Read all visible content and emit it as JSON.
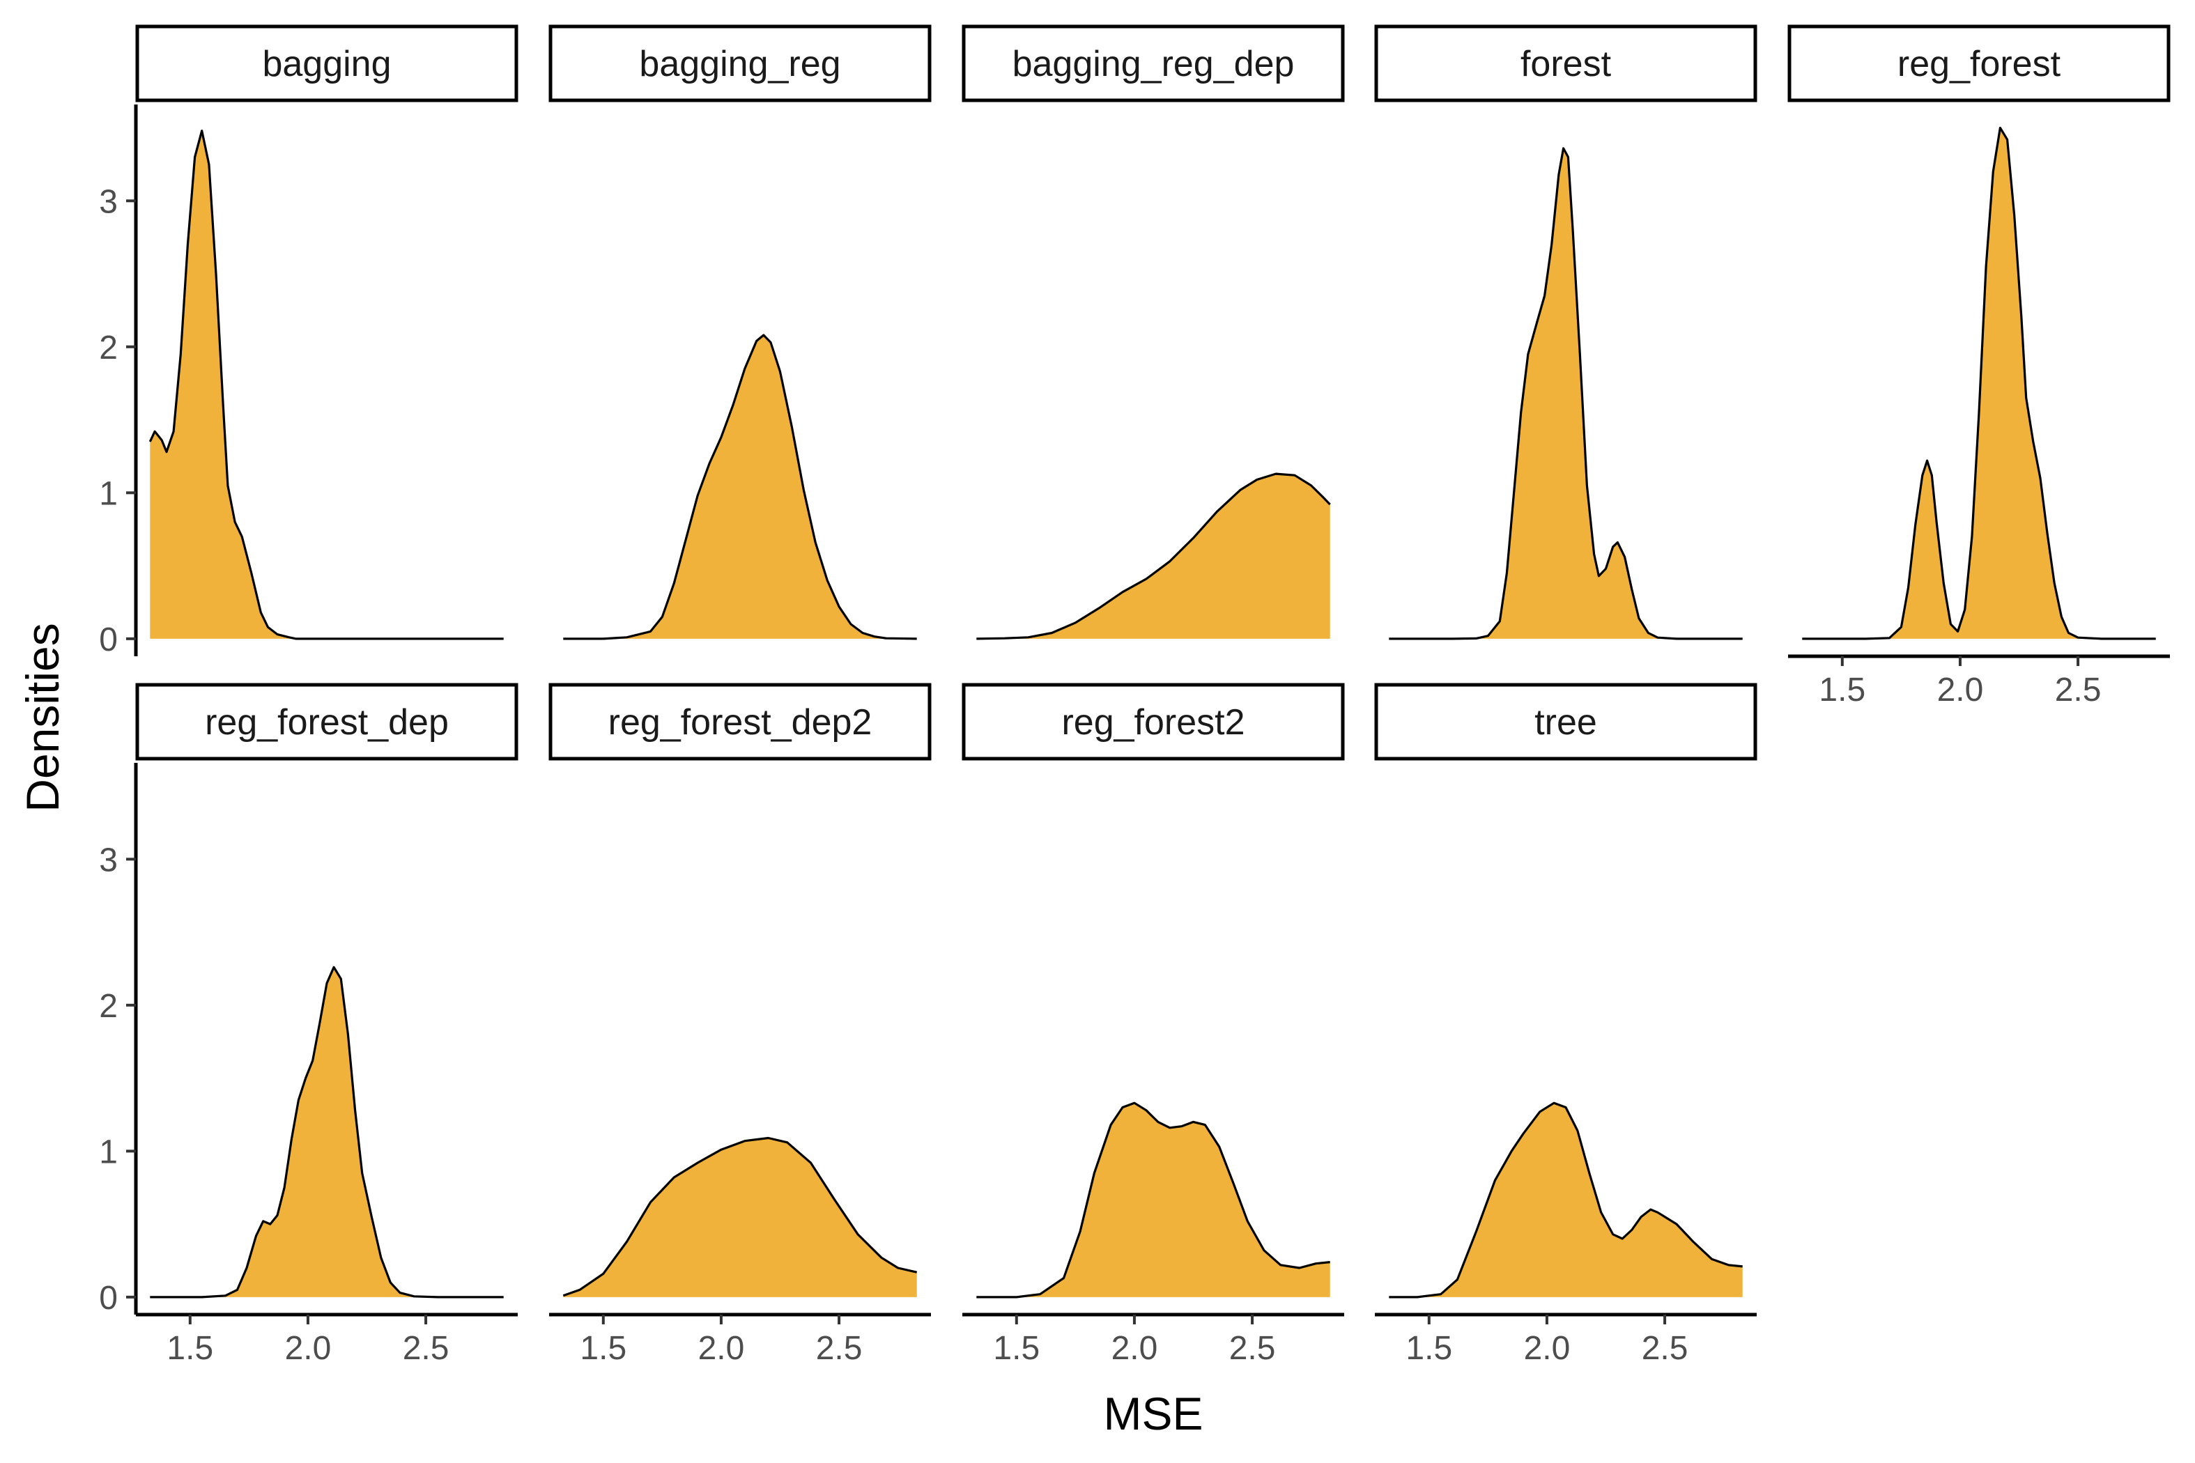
{
  "chart_data": {
    "type": "area",
    "subtype": "faceted density plot",
    "xlabel": "MSE",
    "ylabel": "Densities",
    "xlim": [
      1.27,
      2.89
    ],
    "ylim": [
      -0.12,
      3.66
    ],
    "x_ticks": [
      1.5,
      2.0,
      2.5
    ],
    "x_tick_labels": [
      "1.5",
      "2.0",
      "2.5"
    ],
    "y_ticks": [
      0,
      1,
      2,
      3
    ],
    "y_tick_labels": [
      "0",
      "1",
      "2",
      "3"
    ],
    "grid": false,
    "fill_color": "#F0B23B",
    "line_color": "#000000",
    "strip_fill": "#FFFFFF",
    "panels": [
      {
        "name": "bagging",
        "x_range": [
          1.33,
          2.83
        ],
        "fill_from": 1.33,
        "fill_to": 1.95,
        "points": [
          [
            1.33,
            1.35
          ],
          [
            1.35,
            1.42
          ],
          [
            1.38,
            1.36
          ],
          [
            1.4,
            1.28
          ],
          [
            1.43,
            1.42
          ],
          [
            1.46,
            1.95
          ],
          [
            1.49,
            2.7
          ],
          [
            1.52,
            3.3
          ],
          [
            1.55,
            3.48
          ],
          [
            1.58,
            3.25
          ],
          [
            1.61,
            2.5
          ],
          [
            1.64,
            1.6
          ],
          [
            1.66,
            1.05
          ],
          [
            1.69,
            0.8
          ],
          [
            1.72,
            0.7
          ],
          [
            1.76,
            0.45
          ],
          [
            1.8,
            0.18
          ],
          [
            1.83,
            0.08
          ],
          [
            1.87,
            0.03
          ],
          [
            1.92,
            0.01
          ],
          [
            1.95,
            0.0
          ],
          [
            2.2,
            0.0
          ],
          [
            2.5,
            0.0
          ],
          [
            2.83,
            0.0
          ]
        ]
      },
      {
        "name": "bagging_reg",
        "x_range": [
          1.33,
          2.83
        ],
        "fill_from": 1.33,
        "fill_to": 2.83,
        "points": [
          [
            1.33,
            0.0
          ],
          [
            1.5,
            0.0
          ],
          [
            1.6,
            0.01
          ],
          [
            1.7,
            0.05
          ],
          [
            1.75,
            0.15
          ],
          [
            1.8,
            0.38
          ],
          [
            1.85,
            0.68
          ],
          [
            1.9,
            0.98
          ],
          [
            1.95,
            1.2
          ],
          [
            2.0,
            1.38
          ],
          [
            2.05,
            1.6
          ],
          [
            2.1,
            1.85
          ],
          [
            2.15,
            2.04
          ],
          [
            2.18,
            2.08
          ],
          [
            2.21,
            2.03
          ],
          [
            2.25,
            1.83
          ],
          [
            2.3,
            1.45
          ],
          [
            2.35,
            1.02
          ],
          [
            2.4,
            0.66
          ],
          [
            2.45,
            0.4
          ],
          [
            2.5,
            0.22
          ],
          [
            2.55,
            0.1
          ],
          [
            2.6,
            0.04
          ],
          [
            2.65,
            0.015
          ],
          [
            2.7,
            0.003
          ],
          [
            2.83,
            0.0
          ]
        ]
      },
      {
        "name": "bagging_reg_dep",
        "x_range": [
          1.33,
          2.83
        ],
        "fill_from": 1.33,
        "fill_to": 2.83,
        "points": [
          [
            1.33,
            0.0
          ],
          [
            1.45,
            0.003
          ],
          [
            1.55,
            0.01
          ],
          [
            1.65,
            0.04
          ],
          [
            1.75,
            0.11
          ],
          [
            1.85,
            0.21
          ],
          [
            1.95,
            0.32
          ],
          [
            2.05,
            0.41
          ],
          [
            2.15,
            0.53
          ],
          [
            2.25,
            0.69
          ],
          [
            2.35,
            0.87
          ],
          [
            2.45,
            1.02
          ],
          [
            2.52,
            1.09
          ],
          [
            2.6,
            1.13
          ],
          [
            2.68,
            1.12
          ],
          [
            2.75,
            1.05
          ],
          [
            2.8,
            0.97
          ],
          [
            2.83,
            0.92
          ]
        ]
      },
      {
        "name": "forest",
        "x_range": [
          1.33,
          2.83
        ],
        "fill_from": 1.33,
        "fill_to": 2.83,
        "points": [
          [
            1.33,
            0.0
          ],
          [
            1.6,
            0.0
          ],
          [
            1.7,
            0.002
          ],
          [
            1.75,
            0.02
          ],
          [
            1.8,
            0.12
          ],
          [
            1.83,
            0.45
          ],
          [
            1.86,
            1.0
          ],
          [
            1.89,
            1.55
          ],
          [
            1.92,
            1.95
          ],
          [
            1.96,
            2.18
          ],
          [
            1.99,
            2.35
          ],
          [
            2.02,
            2.7
          ],
          [
            2.05,
            3.18
          ],
          [
            2.07,
            3.36
          ],
          [
            2.09,
            3.3
          ],
          [
            2.11,
            2.8
          ],
          [
            2.14,
            1.95
          ],
          [
            2.17,
            1.05
          ],
          [
            2.2,
            0.58
          ],
          [
            2.22,
            0.43
          ],
          [
            2.25,
            0.48
          ],
          [
            2.28,
            0.63
          ],
          [
            2.3,
            0.66
          ],
          [
            2.33,
            0.56
          ],
          [
            2.36,
            0.34
          ],
          [
            2.39,
            0.14
          ],
          [
            2.43,
            0.04
          ],
          [
            2.47,
            0.008
          ],
          [
            2.55,
            0.0
          ],
          [
            2.83,
            0.0
          ]
        ]
      },
      {
        "name": "reg_forest",
        "x_range": [
          1.33,
          2.83
        ],
        "fill_from": 1.33,
        "fill_to": 2.83,
        "points": [
          [
            1.33,
            0.0
          ],
          [
            1.6,
            0.0
          ],
          [
            1.7,
            0.005
          ],
          [
            1.75,
            0.08
          ],
          [
            1.78,
            0.35
          ],
          [
            1.81,
            0.78
          ],
          [
            1.84,
            1.12
          ],
          [
            1.86,
            1.22
          ],
          [
            1.88,
            1.12
          ],
          [
            1.9,
            0.8
          ],
          [
            1.93,
            0.38
          ],
          [
            1.96,
            0.1
          ],
          [
            1.99,
            0.05
          ],
          [
            2.02,
            0.2
          ],
          [
            2.05,
            0.7
          ],
          [
            2.08,
            1.55
          ],
          [
            2.11,
            2.55
          ],
          [
            2.14,
            3.2
          ],
          [
            2.17,
            3.5
          ],
          [
            2.2,
            3.42
          ],
          [
            2.23,
            2.9
          ],
          [
            2.26,
            2.2
          ],
          [
            2.28,
            1.65
          ],
          [
            2.31,
            1.35
          ],
          [
            2.34,
            1.1
          ],
          [
            2.37,
            0.72
          ],
          [
            2.4,
            0.38
          ],
          [
            2.43,
            0.15
          ],
          [
            2.46,
            0.04
          ],
          [
            2.5,
            0.008
          ],
          [
            2.6,
            0.0
          ],
          [
            2.83,
            0.0
          ]
        ]
      },
      {
        "name": "reg_forest_dep",
        "x_range": [
          1.33,
          2.83
        ],
        "fill_from": 1.33,
        "fill_to": 2.83,
        "points": [
          [
            1.33,
            0.0
          ],
          [
            1.55,
            0.0
          ],
          [
            1.65,
            0.01
          ],
          [
            1.7,
            0.05
          ],
          [
            1.74,
            0.2
          ],
          [
            1.78,
            0.42
          ],
          [
            1.81,
            0.52
          ],
          [
            1.84,
            0.5
          ],
          [
            1.87,
            0.56
          ],
          [
            1.9,
            0.75
          ],
          [
            1.93,
            1.08
          ],
          [
            1.96,
            1.35
          ],
          [
            1.99,
            1.5
          ],
          [
            2.02,
            1.62
          ],
          [
            2.05,
            1.88
          ],
          [
            2.08,
            2.15
          ],
          [
            2.11,
            2.26
          ],
          [
            2.14,
            2.18
          ],
          [
            2.17,
            1.8
          ],
          [
            2.2,
            1.28
          ],
          [
            2.23,
            0.85
          ],
          [
            2.27,
            0.55
          ],
          [
            2.31,
            0.27
          ],
          [
            2.35,
            0.1
          ],
          [
            2.39,
            0.03
          ],
          [
            2.45,
            0.005
          ],
          [
            2.55,
            0.0
          ],
          [
            2.83,
            0.0
          ]
        ]
      },
      {
        "name": "reg_forest_dep2",
        "x_range": [
          1.33,
          2.83
        ],
        "fill_from": 1.33,
        "fill_to": 2.83,
        "points": [
          [
            1.33,
            0.01
          ],
          [
            1.4,
            0.05
          ],
          [
            1.5,
            0.16
          ],
          [
            1.6,
            0.38
          ],
          [
            1.7,
            0.65
          ],
          [
            1.8,
            0.82
          ],
          [
            1.9,
            0.92
          ],
          [
            2.0,
            1.01
          ],
          [
            2.1,
            1.07
          ],
          [
            2.2,
            1.09
          ],
          [
            2.28,
            1.06
          ],
          [
            2.38,
            0.92
          ],
          [
            2.48,
            0.67
          ],
          [
            2.58,
            0.43
          ],
          [
            2.68,
            0.27
          ],
          [
            2.75,
            0.2
          ],
          [
            2.83,
            0.17
          ]
        ]
      },
      {
        "name": "reg_forest2",
        "x_range": [
          1.33,
          2.83
        ],
        "fill_from": 1.33,
        "fill_to": 2.83,
        "points": [
          [
            1.33,
            0.0
          ],
          [
            1.5,
            0.0
          ],
          [
            1.6,
            0.02
          ],
          [
            1.7,
            0.13
          ],
          [
            1.77,
            0.45
          ],
          [
            1.83,
            0.85
          ],
          [
            1.9,
            1.18
          ],
          [
            1.95,
            1.3
          ],
          [
            2.0,
            1.33
          ],
          [
            2.05,
            1.28
          ],
          [
            2.1,
            1.2
          ],
          [
            2.15,
            1.16
          ],
          [
            2.2,
            1.17
          ],
          [
            2.25,
            1.2
          ],
          [
            2.3,
            1.18
          ],
          [
            2.36,
            1.03
          ],
          [
            2.42,
            0.78
          ],
          [
            2.48,
            0.52
          ],
          [
            2.55,
            0.32
          ],
          [
            2.62,
            0.22
          ],
          [
            2.7,
            0.2
          ],
          [
            2.77,
            0.23
          ],
          [
            2.83,
            0.24
          ]
        ]
      },
      {
        "name": "tree",
        "x_range": [
          1.33,
          2.83
        ],
        "fill_from": 1.33,
        "fill_to": 2.83,
        "points": [
          [
            1.33,
            0.0
          ],
          [
            1.45,
            0.0
          ],
          [
            1.55,
            0.02
          ],
          [
            1.62,
            0.12
          ],
          [
            1.7,
            0.45
          ],
          [
            1.78,
            0.8
          ],
          [
            1.85,
            1.0
          ],
          [
            1.9,
            1.12
          ],
          [
            1.97,
            1.27
          ],
          [
            2.03,
            1.33
          ],
          [
            2.08,
            1.3
          ],
          [
            2.13,
            1.14
          ],
          [
            2.18,
            0.85
          ],
          [
            2.23,
            0.58
          ],
          [
            2.28,
            0.43
          ],
          [
            2.32,
            0.4
          ],
          [
            2.36,
            0.46
          ],
          [
            2.4,
            0.55
          ],
          [
            2.44,
            0.6
          ],
          [
            2.47,
            0.58
          ],
          [
            2.5,
            0.55
          ],
          [
            2.55,
            0.5
          ],
          [
            2.62,
            0.38
          ],
          [
            2.7,
            0.26
          ],
          [
            2.77,
            0.22
          ],
          [
            2.83,
            0.21
          ]
        ]
      }
    ]
  }
}
